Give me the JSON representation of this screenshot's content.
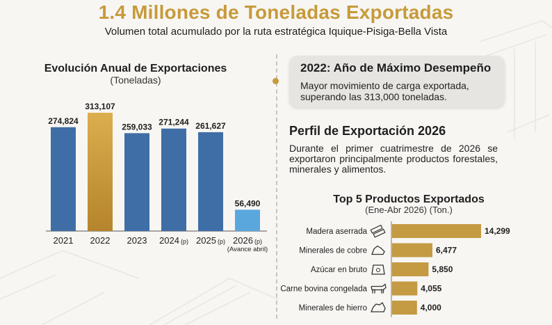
{
  "header": {
    "title": "1.4 Millones de Toneladas Exportadas",
    "subtitle": "Volumen total acumulado por la ruta estratégica Iquique-Pisiga-Bella Vista"
  },
  "highlight": {
    "title": "2022: Año de Máximo Desempeño",
    "text": "Mayor movimiento de carga exportada, superando las 313,000 toneladas."
  },
  "profile": {
    "title": "Perfil de Exportación 2026",
    "text": "Durante el primer cuatrimestre de 2026 se exportaron principalmente productos forestales, minerales y alimentos."
  },
  "colors": {
    "accent": "#c79a3b",
    "bar_blue": "#3f6ea6",
    "bar_light_blue": "#5aa7dd",
    "bar_gold": "#c79a3b",
    "product_bar": "#c49a42"
  },
  "chart_data": [
    {
      "type": "bar",
      "title": "Evolución Anual de Exportaciones",
      "subtitle": "(Toneladas)",
      "categories": [
        "2021",
        "2022",
        "2023",
        "2024",
        "2025",
        "2026"
      ],
      "category_suffix": [
        "",
        "",
        "",
        "(p)",
        "(p)",
        "(p)"
      ],
      "category_note": [
        "",
        "",
        "",
        "",
        "",
        "(Avance abril)"
      ],
      "values": [
        274824,
        313107,
        259033,
        271244,
        261627,
        56490
      ],
      "value_labels": [
        "274,824",
        "313,107",
        "259,033",
        "271,244",
        "261,627",
        "56,490"
      ],
      "highlight_index": 1,
      "partial_index": 5,
      "ylim": [
        0,
        313107
      ],
      "xlabel": "",
      "ylabel": "",
      "grid": false
    },
    {
      "type": "bar",
      "orientation": "horizontal",
      "title": "Top 5 Productos Exportados",
      "subtitle": "(Ene-Abr 2026) (Ton.)",
      "categories": [
        "Madera aserrada",
        "Minerales de cobre",
        "Azúcar en bruto",
        "Carne bovina congelada",
        "Minerales de hierro"
      ],
      "icons": [
        "lumber-icon",
        "copper-ore-icon",
        "sugar-sack-icon",
        "cow-icon",
        "iron-ore-icon"
      ],
      "values": [
        14299,
        6477,
        5850,
        4055,
        4000
      ],
      "value_labels": [
        "14,299",
        "6,477",
        "5,850",
        "4,055",
        "4,000"
      ],
      "xlim": [
        0,
        14299
      ],
      "grid": false
    }
  ]
}
